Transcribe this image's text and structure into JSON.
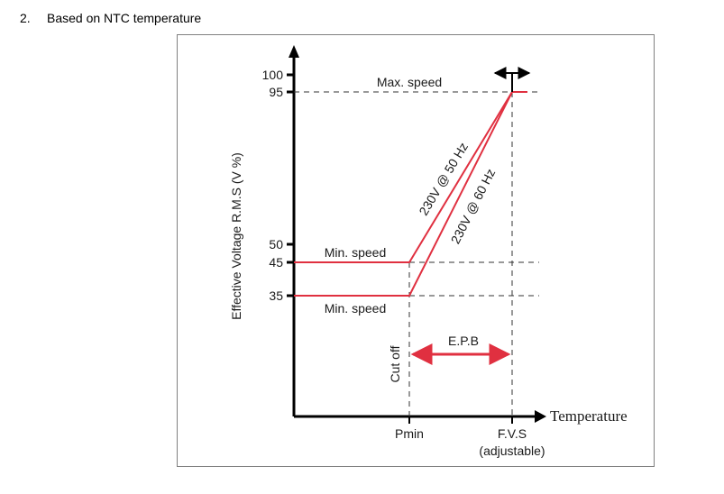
{
  "heading": {
    "number": "2.",
    "title": "Based on NTC temperature"
  },
  "diagram": {
    "y_axis_title": "Effective Voltage R.M.S (V %)",
    "x_axis_title": "Temperature",
    "y_ticks": [
      "100",
      "95",
      "50",
      "45",
      "35"
    ],
    "x_ticks": {
      "pmin": "Pmin",
      "fvs": "F.V.S",
      "fvs_note": "(adjustable)"
    },
    "labels": {
      "max_speed": "Max. speed",
      "min_speed_upper": "Min. speed",
      "min_speed_lower": "Min. speed",
      "line_50hz": "230V @ 50 Hz",
      "line_60hz": "230V @ 60 Hz",
      "epb": "E.P.B",
      "cut_off": "Cut off"
    },
    "colors": {
      "curve": "#e03040",
      "axis": "#000000",
      "dashed": "#333333"
    }
  }
}
